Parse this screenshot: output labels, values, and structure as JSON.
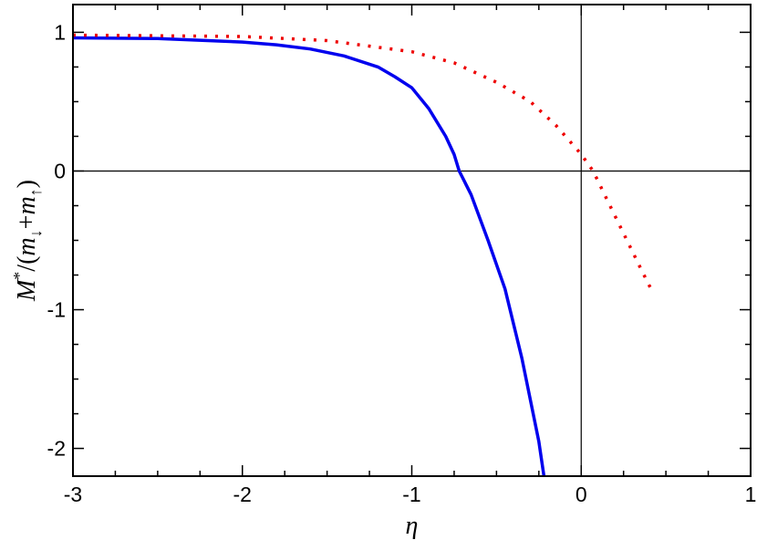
{
  "chart_data": {
    "type": "line",
    "title": "",
    "xlabel": "η",
    "ylabel": {
      "main": "M",
      "sup": "*",
      "open": "/(",
      "m1": "m",
      "sub1": "↓",
      "plus": "+",
      "m2": "m",
      "sub2": "↑",
      "close": ")"
    },
    "xlim": [
      -3,
      1
    ],
    "ylim": [
      -2.2,
      1.2
    ],
    "x_ticks": [
      -3,
      -2,
      -1,
      0,
      1
    ],
    "x_tick_labels": [
      "-3",
      "-2",
      "-1",
      "0",
      "1"
    ],
    "y_ticks": [
      -2,
      -1,
      0,
      1
    ],
    "y_tick_labels": [
      "-2",
      "-1",
      "0",
      "1"
    ],
    "grid": false,
    "reference_lines": {
      "x": 0,
      "y": 0
    },
    "series": [
      {
        "style": "solid",
        "color": "#0000ee",
        "x": [
          -3.0,
          -2.5,
          -2.0,
          -1.8,
          -1.6,
          -1.4,
          -1.2,
          -1.1,
          -1.0,
          -0.9,
          -0.8,
          -0.75,
          -0.72,
          -0.65,
          -0.55,
          -0.45,
          -0.35,
          -0.25,
          -0.22
        ],
        "y": [
          0.96,
          0.955,
          0.93,
          0.91,
          0.88,
          0.83,
          0.75,
          0.68,
          0.6,
          0.45,
          0.25,
          0.12,
          0.0,
          -0.17,
          -0.5,
          -0.85,
          -1.35,
          -1.95,
          -2.2
        ]
      },
      {
        "style": "dotted",
        "color": "#ee0000",
        "x": [
          -3.0,
          -2.5,
          -2.0,
          -1.5,
          -1.0,
          -0.75,
          -0.5,
          -0.3,
          -0.15,
          0.0,
          0.07,
          0.15,
          0.25,
          0.35,
          0.42
        ],
        "y": [
          0.98,
          0.975,
          0.97,
          0.94,
          0.86,
          0.78,
          0.64,
          0.5,
          0.33,
          0.12,
          0.0,
          -0.2,
          -0.45,
          -0.7,
          -0.87
        ]
      }
    ]
  }
}
